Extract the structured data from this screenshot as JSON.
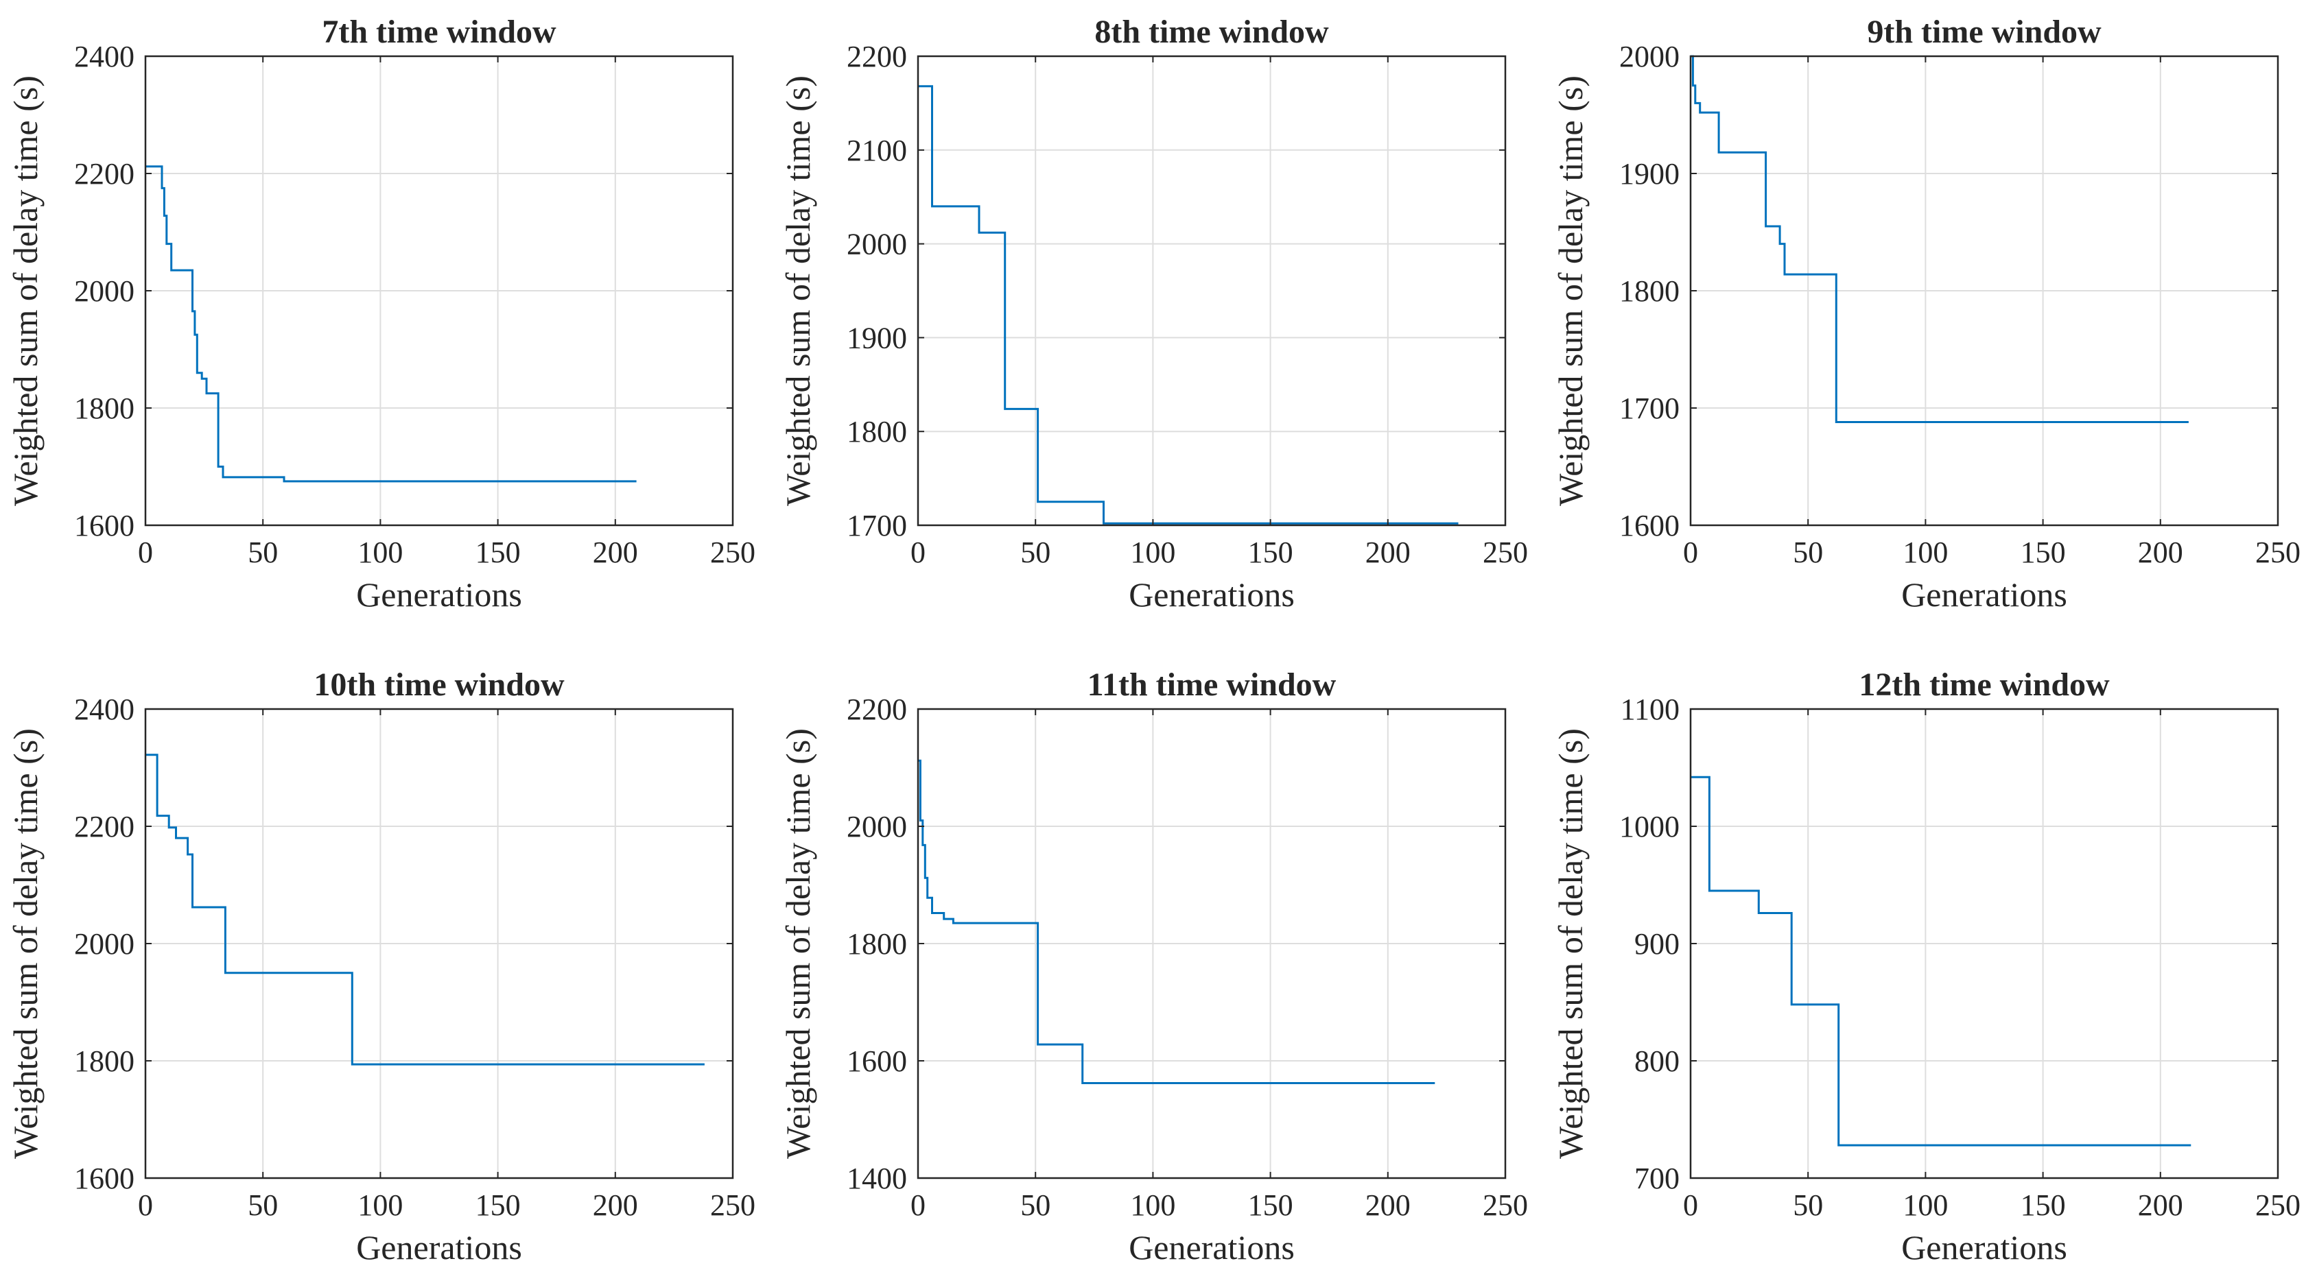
{
  "chart_data": [
    {
      "type": "line",
      "title": "7th time window",
      "xlabel": "Generations",
      "ylabel": "Weighted sum of delay time (s)",
      "xlim": [
        0,
        250
      ],
      "ylim": [
        1600,
        2400
      ],
      "xticks": [
        0,
        50,
        100,
        150,
        200,
        250
      ],
      "yticks": [
        1600,
        1800,
        2000,
        2200,
        2400
      ],
      "grid": true,
      "series": [
        {
          "name": "",
          "color": "#0072BD",
          "x": [
            0,
            7,
            7,
            8,
            8,
            9,
            9,
            11,
            11,
            20,
            20,
            21,
            21,
            22,
            22,
            24,
            24,
            26,
            26,
            31,
            31,
            33,
            33,
            59,
            59,
            209
          ],
          "y": [
            2212,
            2212,
            2175,
            2175,
            2128,
            2128,
            2080,
            2080,
            2035,
            2035,
            1965,
            1965,
            1925,
            1925,
            1860,
            1860,
            1850,
            1850,
            1825,
            1825,
            1700,
            1700,
            1682,
            1682,
            1675,
            1675
          ]
        }
      ]
    },
    {
      "type": "line",
      "title": "8th time window",
      "xlabel": "Generations",
      "ylabel": "Weighted sum of delay time (s)",
      "xlim": [
        0,
        250
      ],
      "ylim": [
        1700,
        2200
      ],
      "xticks": [
        0,
        50,
        100,
        150,
        200,
        250
      ],
      "yticks": [
        1700,
        1800,
        1900,
        2000,
        2100,
        2200
      ],
      "grid": true,
      "series": [
        {
          "name": "",
          "color": "#0072BD",
          "x": [
            0,
            6,
            6,
            26,
            26,
            37,
            37,
            51,
            51,
            79,
            79,
            230
          ],
          "y": [
            2168,
            2168,
            2040,
            2040,
            2012,
            2012,
            1824,
            1824,
            1725,
            1725,
            1702,
            1702
          ]
        }
      ]
    },
    {
      "type": "line",
      "title": "9th time window",
      "xlabel": "Generations",
      "ylabel": "Weighted sum of delay time (s)",
      "xlim": [
        0,
        250
      ],
      "ylim": [
        1600,
        2000
      ],
      "xticks": [
        0,
        50,
        100,
        150,
        200,
        250
      ],
      "yticks": [
        1600,
        1700,
        1800,
        1900,
        2000
      ],
      "grid": true,
      "series": [
        {
          "name": "",
          "color": "#0072BD",
          "x": [
            0,
            1,
            1,
            2,
            2,
            4,
            4,
            12,
            12,
            32,
            32,
            38,
            38,
            40,
            40,
            62,
            62,
            212
          ],
          "y": [
            2000,
            2000,
            1975,
            1975,
            1960,
            1960,
            1952,
            1952,
            1918,
            1918,
            1855,
            1855,
            1840,
            1840,
            1814,
            1814,
            1688,
            1688
          ]
        }
      ]
    },
    {
      "type": "line",
      "title": "10th time window",
      "xlabel": "Generations",
      "ylabel": "Weighted sum of delay time (s)",
      "xlim": [
        0,
        250
      ],
      "ylim": [
        1600,
        2400
      ],
      "xticks": [
        0,
        50,
        100,
        150,
        200,
        250
      ],
      "yticks": [
        1600,
        1800,
        2000,
        2200,
        2400
      ],
      "grid": true,
      "series": [
        {
          "name": "",
          "color": "#0072BD",
          "x": [
            0,
            5,
            5,
            10,
            10,
            13,
            13,
            18,
            18,
            20,
            20,
            34,
            34,
            88,
            88,
            238
          ],
          "y": [
            2322,
            2322,
            2218,
            2218,
            2198,
            2198,
            2180,
            2180,
            2152,
            2152,
            2062,
            2062,
            1950,
            1950,
            1794,
            1794
          ]
        }
      ]
    },
    {
      "type": "line",
      "title": "11th time window",
      "xlabel": "Generations",
      "ylabel": "Weighted sum of delay time (s)",
      "xlim": [
        0,
        250
      ],
      "ylim": [
        1400,
        2200
      ],
      "xticks": [
        0,
        50,
        100,
        150,
        200,
        250
      ],
      "yticks": [
        1400,
        1600,
        1800,
        2000,
        2200
      ],
      "grid": true,
      "series": [
        {
          "name": "",
          "color": "#0072BD",
          "x": [
            0,
            1,
            1,
            2,
            2,
            3,
            3,
            4,
            4,
            6,
            6,
            11,
            11,
            15,
            15,
            51,
            51,
            70,
            70,
            220
          ],
          "y": [
            2112,
            2112,
            2010,
            2010,
            1968,
            1968,
            1912,
            1912,
            1878,
            1878,
            1852,
            1852,
            1842,
            1842,
            1835,
            1835,
            1628,
            1628,
            1562,
            1562
          ]
        }
      ]
    },
    {
      "type": "line",
      "title": "12th time window",
      "xlabel": "Generations",
      "ylabel": "Weighted sum of delay time (s)",
      "xlim": [
        0,
        250
      ],
      "ylim": [
        700,
        1100
      ],
      "xticks": [
        0,
        50,
        100,
        150,
        200,
        250
      ],
      "yticks": [
        700,
        800,
        900,
        1000,
        1100
      ],
      "grid": true,
      "series": [
        {
          "name": "",
          "color": "#0072BD",
          "x": [
            0,
            8,
            8,
            29,
            29,
            43,
            43,
            63,
            63,
            213
          ],
          "y": [
            1042,
            1042,
            945,
            945,
            926,
            926,
            848,
            848,
            728,
            728
          ]
        }
      ]
    }
  ]
}
